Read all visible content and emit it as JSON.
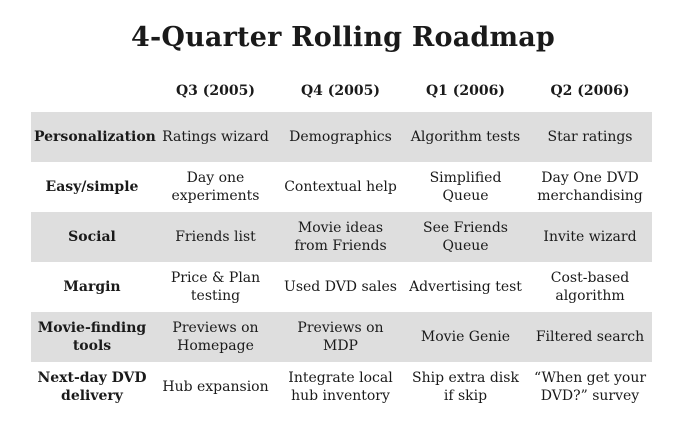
{
  "title": "4-Quarter Rolling Roadmap",
  "columns": [
    "",
    "Q3 (2005)",
    "Q4 (2005)",
    "Q1 (2006)",
    "Q2 (2006)"
  ],
  "rows": [
    {
      "label": "Personalization",
      "cells": [
        "Ratings wizard",
        "Demographics",
        "Algorithm tests",
        "Star ratings"
      ],
      "shaded": true
    },
    {
      "label": "Easy/simple",
      "cells": [
        "Day one experiments",
        "Contextual help",
        "Simplified Queue",
        "Day One DVD merchandising"
      ],
      "shaded": false
    },
    {
      "label": "Social",
      "cells": [
        "Friends list",
        "Movie ideas from Friends",
        "See Friends Queue",
        "Invite wizard"
      ],
      "shaded": true
    },
    {
      "label": "Margin",
      "cells": [
        "Price & Plan testing",
        "Used DVD sales",
        "Advertising test",
        "Cost-based algorithm"
      ],
      "shaded": false
    },
    {
      "label": "Movie-finding tools",
      "cells": [
        "Previews on Homepage",
        "Previews on MDP",
        "Movie Genie",
        "Filtered search"
      ],
      "shaded": true
    },
    {
      "label": "Next-day DVD delivery",
      "cells": [
        "Hub expansion",
        "Integrate local hub inventory",
        "Ship extra disk if skip",
        "“When get your DVD?” survey"
      ],
      "shaded": false
    }
  ]
}
